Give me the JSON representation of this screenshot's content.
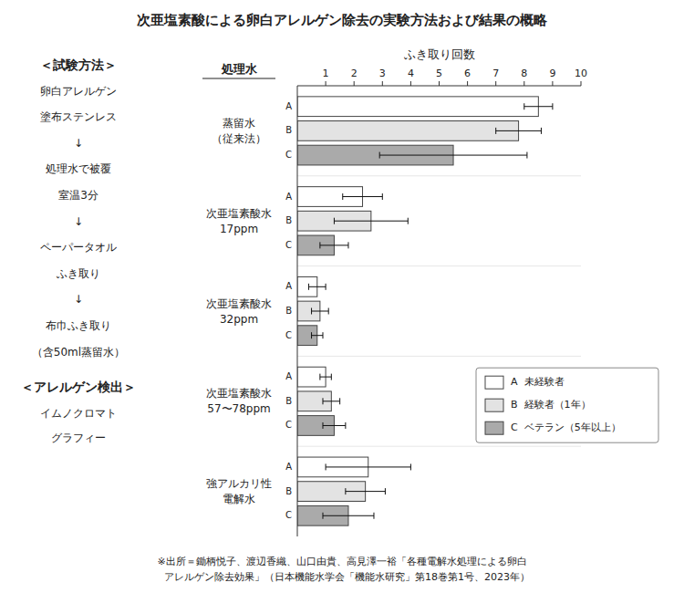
{
  "chart_data": {
    "type": "bar",
    "orientation": "horizontal",
    "title": "次亜塩素酸による卵白アレルゲン除去の実験方法および結果の概略",
    "x_label": "ふき取り回数",
    "category_header": "処理水",
    "categories": [
      [
        "蒸留水",
        "（従来法）"
      ],
      [
        "次亜塩素酸水",
        "17ppm"
      ],
      [
        "次亜塩素酸水",
        "32ppm"
      ],
      [
        "次亜塩素酸水",
        "57〜78ppm"
      ],
      [
        "強アルカリ性",
        "電解水"
      ]
    ],
    "series": [
      {
        "name": "A  未経験者",
        "label": "A",
        "color": "#ffffff",
        "values": [
          8.5,
          2.3,
          0.7,
          1.0,
          2.5
        ],
        "errors": [
          0.5,
          0.7,
          0.3,
          0.2,
          1.5
        ]
      },
      {
        "name": "B  経験者（1年）",
        "label": "B",
        "color": "#e3e3e3",
        "values": [
          7.8,
          2.6,
          0.8,
          1.2,
          2.4
        ],
        "errors": [
          0.8,
          1.3,
          0.3,
          0.3,
          0.7
        ]
      },
      {
        "name": "C  ベテラン（5年以上）",
        "label": "C",
        "color": "#aaaaaa",
        "values": [
          5.5,
          1.3,
          0.7,
          1.3,
          1.8
        ],
        "errors": [
          2.6,
          0.5,
          0.2,
          0.4,
          0.9
        ]
      }
    ],
    "xlim": [
      0,
      10
    ],
    "xticks": [
      1,
      2,
      3,
      4,
      5,
      6,
      7,
      8,
      9,
      10
    ],
    "grid": false,
    "legend": "lower right",
    "annotations": {
      "method": [
        "＜試験方法＞",
        "卵白アレルゲン",
        "塗布ステンレス",
        "↓",
        "処理水で被覆",
        "室温3分",
        "↓",
        "ペーパータオル",
        "ふき取り",
        "↓",
        "布巾ふき取り",
        "（含50ml蒸留水）"
      ],
      "detection": [
        "＜アレルゲン検出＞",
        "イムノクロマト",
        "グラフィー"
      ],
      "source": [
        "※出所＝鋤柄悦子、渡辺香織、山口由貴、高見澤一裕「各種電解水処理による卵白",
        "　アレルゲン除去効果」（日本機能水学会「機能水研究」第18巻第1号、2023年）"
      ]
    }
  }
}
